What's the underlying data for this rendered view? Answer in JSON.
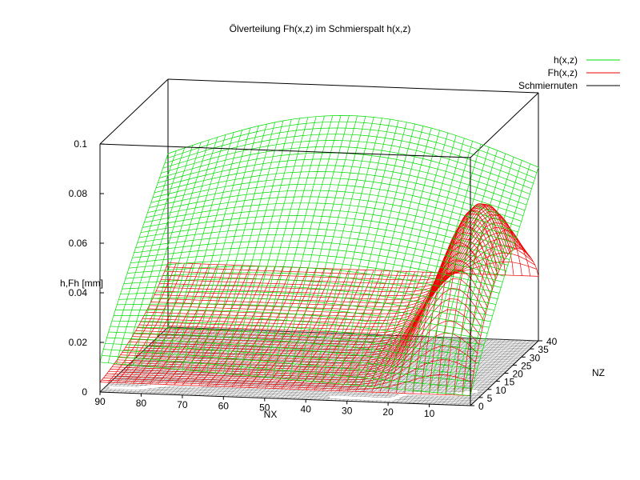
{
  "chart_data": {
    "type": "surface3d",
    "title": "Ölverteilung Fh(x,z) im Schmierspalt h(x,z)",
    "xlabel": "NX",
    "ylabel": "NZ",
    "zlabel": "h,Fh [mm]",
    "x_range": [
      0,
      90
    ],
    "y_range": [
      0,
      40
    ],
    "z_range": [
      0,
      0.1
    ],
    "x_ticks": [
      "90",
      "80",
      "70",
      "60",
      "50",
      "40",
      "30",
      "20",
      "10"
    ],
    "y_ticks": [
      "0",
      "5",
      "10",
      "15",
      "20",
      "25",
      "30",
      "35",
      "40"
    ],
    "z_ticks": [
      "0",
      "0.02",
      "0.04",
      "0.06",
      "0.08",
      "0.1"
    ],
    "legend_position": "top-right",
    "series": [
      {
        "name": "h(x,z)",
        "color": "#00dd00",
        "description_values": {
          "min_near_z0": 0.01,
          "max": 0.075
        }
      },
      {
        "name": "Fh(x,z)",
        "color": "#ee0000",
        "description_values": {
          "max": 0.068
        }
      },
      {
        "name": "Schmiernuten",
        "color": "#000000"
      }
    ]
  }
}
